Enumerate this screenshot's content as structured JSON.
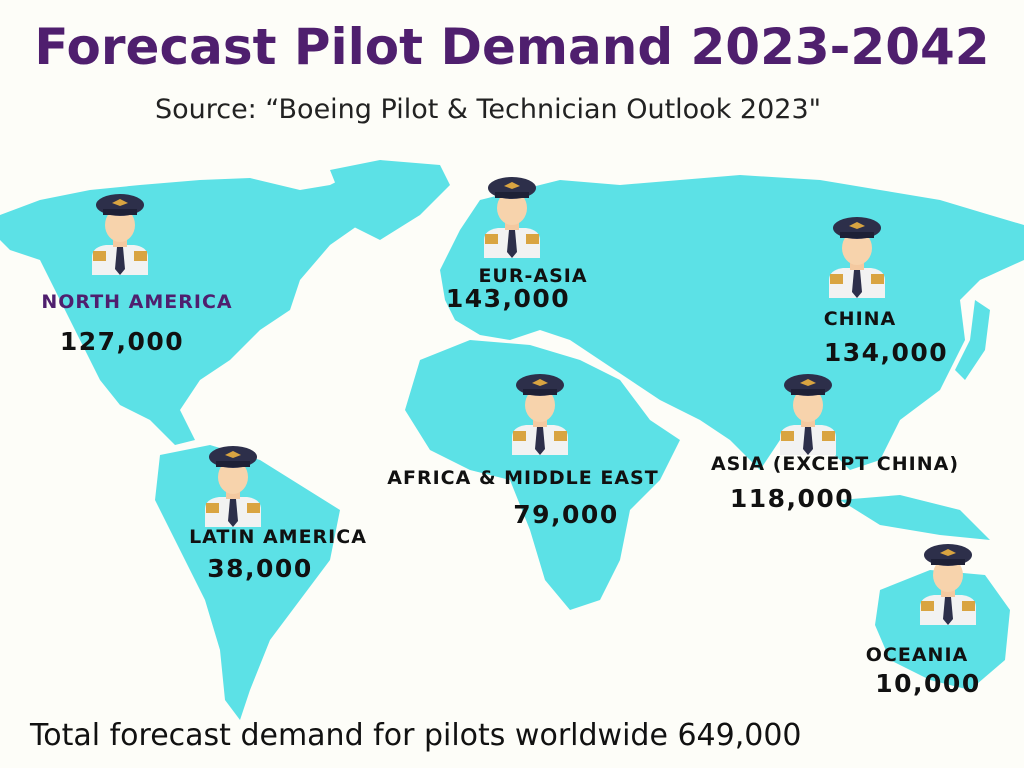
{
  "title": "Forecast Pilot Demand 2023-2042",
  "source": "Source: “Boeing  Pilot & Technician Outlook 2023\"",
  "regions": [
    {
      "name": "NORTH AMERICA",
      "value": "127,000"
    },
    {
      "name": "EUR-ASIA",
      "value": "143,000"
    },
    {
      "name": "CHINA",
      "value": "134,000"
    },
    {
      "name": "AFRICA & MIDDLE EAST",
      "value": "79,000"
    },
    {
      "name": "ASIA (EXCEPT CHINA)",
      "value": "118,000"
    },
    {
      "name": "LATIN AMERICA",
      "value": "38,000"
    },
    {
      "name": "OCEANIA",
      "value": "10,000"
    }
  ],
  "total": "Total forecast demand for pilots worldwide 649,000"
}
